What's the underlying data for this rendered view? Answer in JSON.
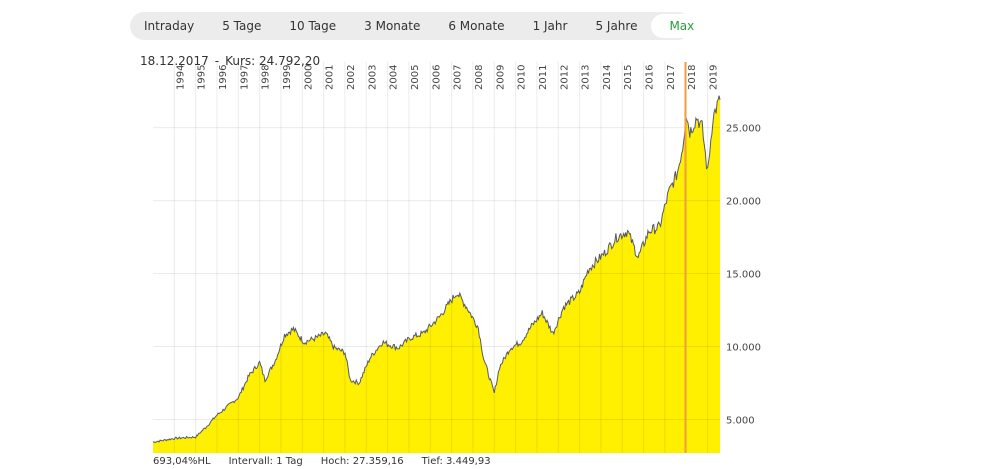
{
  "tabs": [
    {
      "label": "Intraday"
    },
    {
      "label": "5 Tage"
    },
    {
      "label": "10 Tage"
    },
    {
      "label": "3 Monate"
    },
    {
      "label": "6 Monate"
    },
    {
      "label": "1 Jahr"
    },
    {
      "label": "5 Jahre"
    },
    {
      "label": "Max",
      "active": true
    }
  ],
  "info": {
    "date": "18.12.2017",
    "separator": "-",
    "kurs_label": "Kurs:",
    "kurs_value": "24.792,20"
  },
  "footer": {
    "performance": "693,04%HL",
    "interval": "Intervall: 1 Tag",
    "high": "Hoch:  27.359,16",
    "low": "Tief:  3.449,93"
  },
  "colors": {
    "fill": "#ffef00",
    "line": "#555a60",
    "marker": "#f0a040",
    "active_tab": "#2a9d3a"
  },
  "chart_data": {
    "type": "area",
    "x_tick_labels": [
      "1994",
      "1995",
      "1996",
      "1997",
      "1998",
      "1999",
      "2000",
      "2001",
      "2002",
      "2003",
      "2004",
      "2005",
      "2006",
      "2007",
      "2008",
      "2009",
      "2010",
      "2011",
      "2012",
      "2013",
      "2014",
      "2015",
      "2016",
      "2017",
      "2018",
      "2019"
    ],
    "y_tick_labels": [
      "25.000",
      "20.000",
      "15.000",
      "10.000",
      "5.000"
    ],
    "y_ticks": [
      25000,
      20000,
      15000,
      10000,
      5000
    ],
    "xlim": [
      "1993-01",
      "2019-08"
    ],
    "ylim": [
      2700,
      29500
    ],
    "grid": true,
    "marker_date": "2017-12-18",
    "series": [
      {
        "points": [
          [
            "1993-01",
            3450
          ],
          [
            "1994-01",
            3700
          ],
          [
            "1995-01",
            3800
          ],
          [
            "1995-07",
            4500
          ],
          [
            "1996-01",
            5300
          ],
          [
            "1997-01",
            6500
          ],
          [
            "1997-07",
            8000
          ],
          [
            "1998-01",
            8900
          ],
          [
            "1998-04",
            7700
          ],
          [
            "1998-10",
            9100
          ],
          [
            "1999-03",
            10800
          ],
          [
            "1999-08",
            11200
          ],
          [
            "2000-02",
            10300
          ],
          [
            "2000-09",
            10600
          ],
          [
            "2001-02",
            10900
          ],
          [
            "2001-07",
            9900
          ],
          [
            "2002-01",
            9600
          ],
          [
            "2002-04",
            7700
          ],
          [
            "2002-09",
            7500
          ],
          [
            "2003-03",
            9200
          ],
          [
            "2003-10",
            10300
          ],
          [
            "2004-07",
            9900
          ],
          [
            "2005-02",
            10600
          ],
          [
            "2005-09",
            10900
          ],
          [
            "2006-06",
            12000
          ],
          [
            "2007-04",
            13700
          ],
          [
            "2007-10",
            12600
          ],
          [
            "2008-04",
            11300
          ],
          [
            "2008-07",
            9200
          ],
          [
            "2009-01",
            6800
          ],
          [
            "2009-04",
            8600
          ],
          [
            "2009-10",
            9900
          ],
          [
            "2010-04",
            10300
          ],
          [
            "2010-10",
            11400
          ],
          [
            "2011-04",
            12300
          ],
          [
            "2011-10",
            10900
          ],
          [
            "2012-04",
            12700
          ],
          [
            "2013-01",
            13700
          ],
          [
            "2013-06",
            15300
          ],
          [
            "2014-03",
            16400
          ],
          [
            "2014-10",
            17500
          ],
          [
            "2015-04",
            17900
          ],
          [
            "2015-10",
            16100
          ],
          [
            "2016-04",
            17900
          ],
          [
            "2016-10",
            18200
          ],
          [
            "2017-03",
            20500
          ],
          [
            "2017-08",
            21900
          ],
          [
            "2017-11",
            23700
          ],
          [
            "2018-01",
            26000
          ],
          [
            "2018-03",
            24700
          ],
          [
            "2018-07",
            25700
          ],
          [
            "2018-10",
            25000
          ],
          [
            "2019-01",
            21900
          ],
          [
            "2019-04",
            25700
          ],
          [
            "2019-07",
            26700
          ],
          [
            "2019-08",
            26900
          ]
        ]
      }
    ]
  }
}
